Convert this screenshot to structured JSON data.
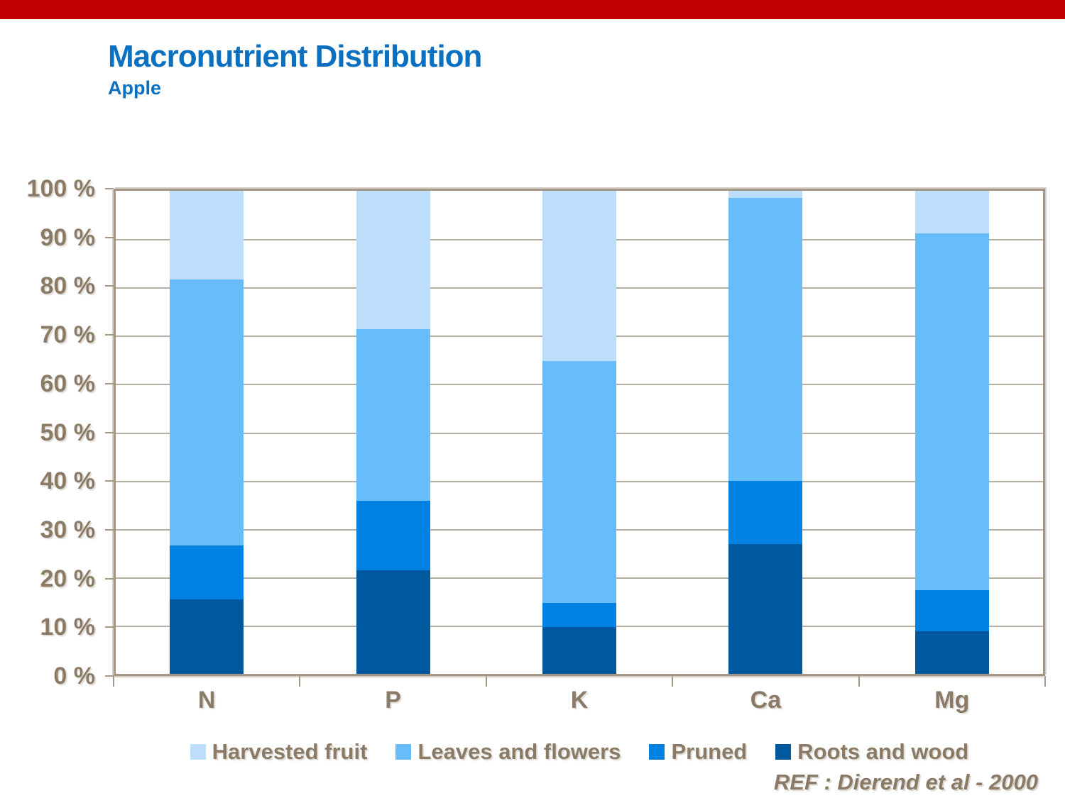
{
  "page": {
    "top_bar_color": "#C00000",
    "title": "Macronutrient Distribution",
    "subtitle": "Apple",
    "title_color": "#0B70BF",
    "text_color": "#8A7A66",
    "axis_color": "#A49786",
    "gridline_color": "#B5AEA2",
    "ref_note": "REF :  Dierend et al - 2000"
  },
  "chart_data": {
    "type": "bar",
    "stacked": true,
    "title": "Macronutrient Distribution",
    "subtitle": "Apple",
    "categories": [
      "N",
      "P",
      "K",
      "Ca",
      "Mg"
    ],
    "series": [
      {
        "name": "Roots and wood",
        "color": "#00589E",
        "values": [
          15.4,
          21.5,
          9.7,
          26.9,
          8.8
        ]
      },
      {
        "name": "Pruned",
        "color": "#0082E3",
        "values": [
          11.2,
          14.3,
          5.0,
          13.0,
          8.5
        ]
      },
      {
        "name": "Leaves and flowers",
        "color": "#66BDFA",
        "values": [
          55.0,
          35.6,
          50.1,
          58.6,
          73.9
        ]
      },
      {
        "name": "Harvested fruit",
        "color": "#BCDEFB",
        "values": [
          18.4,
          28.6,
          35.2,
          1.5,
          8.8
        ]
      }
    ],
    "y_ticks": [
      "100 %",
      "90 %",
      "80 %",
      "70 %",
      "60 %",
      "50 %",
      "40 %",
      "30 %",
      "20 %",
      "10 %",
      "0 %"
    ],
    "ylim": [
      0,
      100
    ],
    "grid": true,
    "legend_position": "bottom",
    "legend_order": [
      "Harvested fruit",
      "Leaves and flowers",
      "Pruned",
      "Roots and wood"
    ],
    "ref": "REF :  Dierend et al - 2000"
  }
}
